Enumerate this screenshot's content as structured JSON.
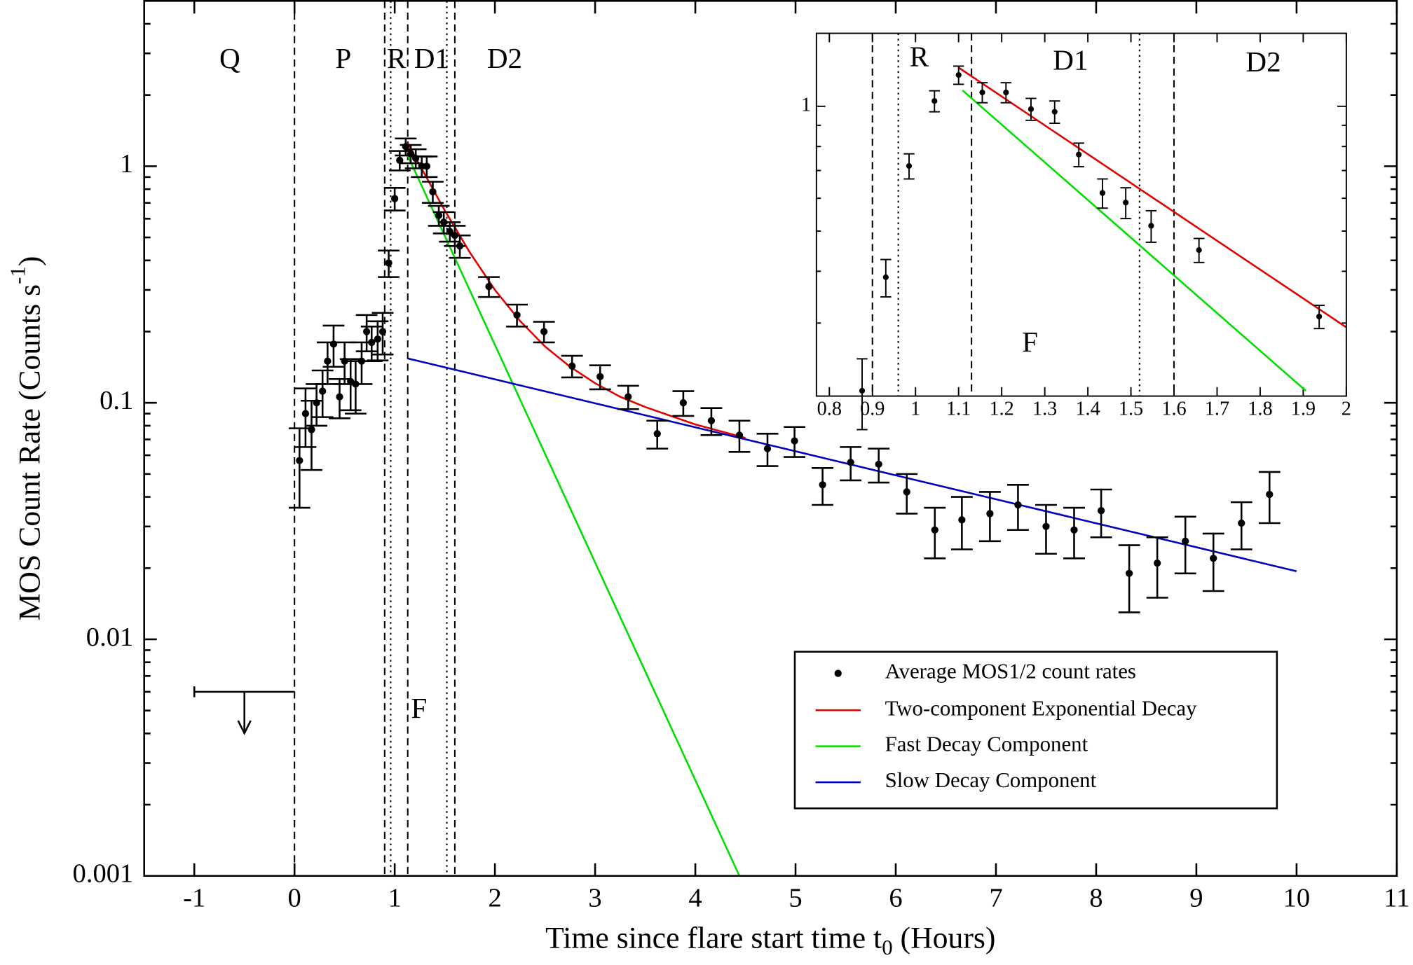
{
  "chart_data": [
    {
      "type": "scatter",
      "log_y": true,
      "x_label": {
        "text": "Time since flare start time t",
        "sub": "0",
        "after": " (Hours)"
      },
      "y_label": {
        "text": "MOS Count Rate (Counts s",
        "sup": "-1",
        "after": ")"
      },
      "xlim": [
        -1.5,
        11
      ],
      "ylim": [
        0.001,
        5
      ],
      "xticks": [
        -1,
        0,
        1,
        2,
        3,
        4,
        5,
        6,
        7,
        8,
        9,
        10,
        11
      ],
      "yticks": [
        0.001,
        0.01,
        0.1,
        1
      ],
      "yticks_minor": [
        0.002,
        0.003,
        0.004,
        0.005,
        0.006,
        0.007,
        0.008,
        0.009,
        0.02,
        0.03,
        0.04,
        0.05,
        0.06,
        0.07,
        0.08,
        0.09,
        0.2,
        0.3,
        0.4,
        0.5,
        0.6,
        0.7,
        0.8,
        0.9,
        2,
        3,
        4,
        5
      ],
      "points": {
        "name": "Average MOS1/2 count rates",
        "color": "#000000",
        "x": [
          0.05,
          0.11,
          0.17,
          0.22,
          0.28,
          0.33,
          0.39,
          0.45,
          0.5,
          0.56,
          0.61,
          0.67,
          0.72,
          0.77,
          0.83,
          0.88,
          0.94,
          1.0,
          1.05,
          1.11,
          1.16,
          1.21,
          1.27,
          1.32,
          1.38,
          1.44,
          1.49,
          1.55,
          1.6,
          1.65,
          1.94,
          2.22,
          2.49,
          2.77,
          3.05,
          3.33,
          3.62,
          3.88,
          4.16,
          4.44,
          4.72,
          4.99,
          5.27,
          5.55,
          5.83,
          6.11,
          6.39,
          6.66,
          6.94,
          7.22,
          7.5,
          7.78,
          8.05,
          8.33,
          8.61,
          8.89,
          9.17,
          9.45,
          9.73
        ],
        "values": [
          0.057,
          0.09,
          0.077,
          0.1,
          0.112,
          0.15,
          0.177,
          0.106,
          0.15,
          0.123,
          0.12,
          0.15,
          0.2,
          0.18,
          0.186,
          0.2,
          0.39,
          0.73,
          1.06,
          1.21,
          1.13,
          1.08,
          1.0,
          1.0,
          0.78,
          0.62,
          0.58,
          0.53,
          0.51,
          0.46,
          0.31,
          0.235,
          0.2,
          0.143,
          0.129,
          0.106,
          0.074,
          0.1,
          0.084,
          0.073,
          0.064,
          0.069,
          0.045,
          0.056,
          0.055,
          0.042,
          0.029,
          0.032,
          0.034,
          0.037,
          0.03,
          0.029,
          0.035,
          0.019,
          0.021,
          0.026,
          0.022,
          0.031,
          0.041
        ],
        "errors": [
          0.021,
          0.025,
          0.025,
          0.02,
          0.025,
          0.03,
          0.035,
          0.02,
          0.03,
          0.03,
          0.03,
          0.03,
          0.035,
          0.03,
          0.035,
          0.04,
          0.05,
          0.08,
          0.1,
          0.1,
          0.1,
          0.1,
          0.1,
          0.1,
          0.08,
          0.06,
          0.06,
          0.05,
          0.05,
          0.05,
          0.03,
          0.025,
          0.02,
          0.015,
          0.015,
          0.012,
          0.01,
          0.012,
          0.011,
          0.011,
          0.01,
          0.01,
          0.008,
          0.009,
          0.009,
          0.008,
          0.007,
          0.008,
          0.008,
          0.008,
          0.007,
          0.007,
          0.008,
          0.006,
          0.006,
          0.007,
          0.006,
          0.007,
          0.01
        ]
      },
      "lines": [
        {
          "name": "Two-component Exponential Decay",
          "color": "#e00000",
          "x": [
            1.13,
            1.25,
            1.5,
            1.75,
            2.0,
            2.25,
            2.5,
            2.75,
            3.0,
            3.25,
            3.5,
            4.0,
            4.5
          ],
          "values": [
            1.26,
            1.01,
            0.65,
            0.432,
            0.3,
            0.222,
            0.173,
            0.142,
            0.121,
            0.106,
            0.096,
            0.081,
            0.071
          ]
        },
        {
          "name": "Fast Decay Component",
          "color": "#00dd00",
          "x": [
            1.13,
            4.44
          ],
          "values": [
            1.11,
            0.001
          ]
        },
        {
          "name": "Slow Decay Component",
          "color": "#0000c0",
          "x": [
            1.13,
            10
          ],
          "values": [
            0.154,
            0.0194
          ]
        }
      ],
      "upper_limit": {
        "x": [
          -1,
          0
        ],
        "value": 0.006
      },
      "boundaries": [
        {
          "x": 0,
          "style": "dashed"
        },
        {
          "x": 0.9,
          "style": "dashed"
        },
        {
          "x": 0.96,
          "style": "dotted"
        },
        {
          "x": 1.13,
          "style": "dashed"
        },
        {
          "x": 1.52,
          "style": "dotted"
        },
        {
          "x": 1.6,
          "style": "dashed"
        }
      ],
      "annotations": [
        "Q",
        "P",
        "R",
        "D1",
        "D2",
        "F"
      ],
      "legend_position": "lower right"
    },
    {
      "type": "scatter",
      "log_y": true,
      "xlim": [
        0.77,
        2
      ],
      "ylim": [
        0.2,
        1.5
      ],
      "xticks": [
        0.8,
        0.9,
        1,
        1.1,
        1.2,
        1.3,
        1.4,
        1.5,
        1.6,
        1.7,
        1.8,
        1.9,
        2
      ],
      "yticks": [
        1
      ],
      "yticks_minor": [
        0.3,
        0.4,
        0.5,
        0.6,
        0.7,
        0.8,
        0.9
      ],
      "points": {
        "color": "#000000",
        "x": [
          0.876,
          0.931,
          0.985,
          1.044,
          1.1,
          1.155,
          1.21,
          1.268,
          1.323,
          1.379,
          1.434,
          1.488,
          1.547,
          1.658,
          1.937
        ],
        "values": [
          0.206,
          0.387,
          0.718,
          1.03,
          1.19,
          1.08,
          1.08,
          0.985,
          0.97,
          0.765,
          0.618,
          0.586,
          0.515,
          0.45,
          0.311
        ],
        "errors": [
          0.04,
          0.04,
          0.05,
          0.06,
          0.06,
          0.06,
          0.06,
          0.06,
          0.06,
          0.05,
          0.05,
          0.05,
          0.045,
          0.03,
          0.02
        ]
      },
      "lines": [
        {
          "color": "#e00000",
          "x": [
            1.1,
            2.0
          ],
          "values": [
            1.24,
            0.293
          ]
        },
        {
          "color": "#00dd00",
          "x": [
            1.109,
            1.906
          ],
          "values": [
            1.093,
            0.206
          ]
        }
      ],
      "boundaries": [
        {
          "x": 0.9,
          "style": "dashed"
        },
        {
          "x": 0.96,
          "style": "dotted"
        },
        {
          "x": 1.13,
          "style": "dashed"
        },
        {
          "x": 1.52,
          "style": "dotted"
        },
        {
          "x": 1.6,
          "style": "dashed"
        }
      ],
      "annotations": [
        "R",
        "D1",
        "D2",
        "F"
      ]
    }
  ]
}
